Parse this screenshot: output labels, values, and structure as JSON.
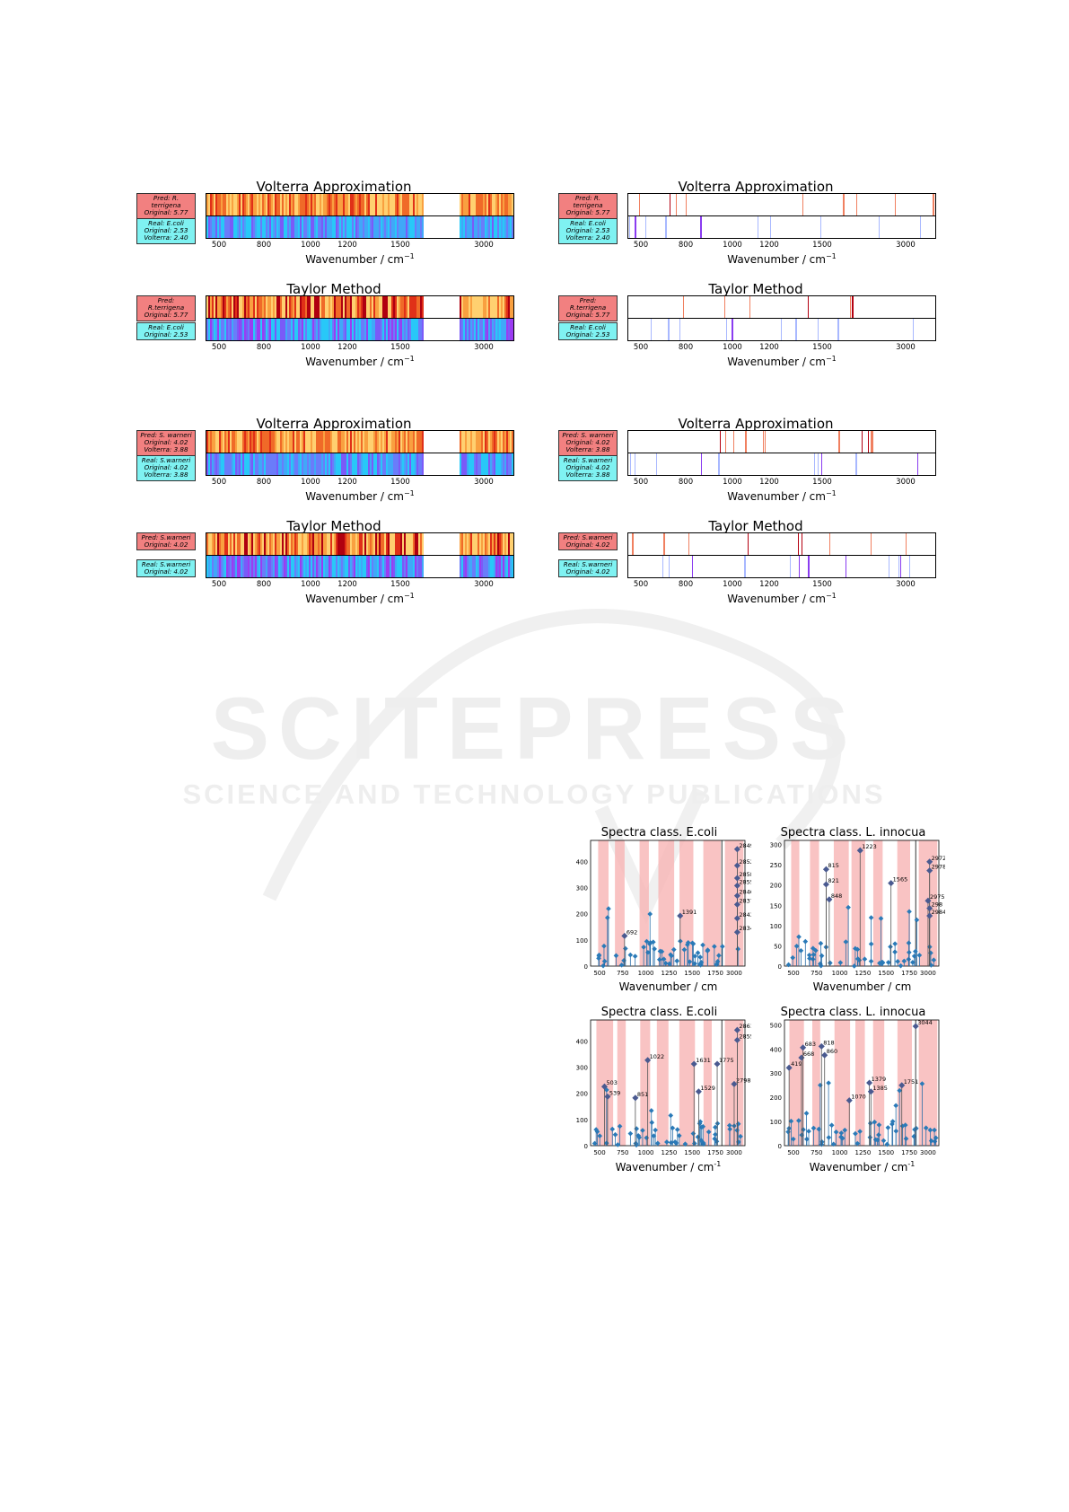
{
  "heatmap_panels": [
    {
      "id": "p1",
      "title": "Volterra Approximation",
      "pred": [
        "Pred: R. terrigena",
        "Original:  5.77",
        "Volterra: 5.41"
      ],
      "real": [
        "Real: E.coli",
        "Original:  2.53",
        "Volterra: 2.40"
      ],
      "style": "dense",
      "seed": 1
    },
    {
      "id": "p2",
      "title": "Volterra Approximation",
      "pred": [
        "Pred: R. terrigena",
        "Original:  5.77",
        "Volterra: 5.41"
      ],
      "real": [
        "Real: E.coli",
        "Original:  2.53",
        "Volterra: 2.40"
      ],
      "style": "sparse",
      "seed": 2
    },
    {
      "id": "p3",
      "title": "Taylor Method",
      "pred": [
        "Pred: R.terrigena",
        "Original:  5.77"
      ],
      "real": [
        "Real: E.coli",
        "Original:  2.53"
      ],
      "style": "dense2",
      "seed": 3
    },
    {
      "id": "p4",
      "title": "Taylor Method",
      "pred": [
        "Pred: R.terrigena",
        "Original:  5.77"
      ],
      "real": [
        "Real: E.coli",
        "Original:  2.53"
      ],
      "style": "sparse",
      "seed": 4
    },
    {
      "id": "p5",
      "title": "Volterra Approximation",
      "pred": [
        "Pred: S. warneri",
        "Original:  4.02",
        "Volterra: 3.88"
      ],
      "real": [
        "Real: S.warneri",
        "Original:  4.02",
        "Volterra: 3.88"
      ],
      "style": "dense",
      "seed": 5
    },
    {
      "id": "p6",
      "title": "Volterra Approximation",
      "pred": [
        "Pred: S. warneri",
        "Original:  4.02",
        "Volterra: 3.88"
      ],
      "real": [
        "Real: S.warneri",
        "Original:  4.02",
        "Volterra: 3.88"
      ],
      "style": "sparse",
      "seed": 6
    },
    {
      "id": "p7",
      "title": "Taylor Method",
      "pred": [
        "Pred: S.warneri",
        "Original:  4.02"
      ],
      "real": [
        "Real: S.warneri",
        "Original:  4.02"
      ],
      "style": "dense2",
      "seed": 7
    },
    {
      "id": "p8",
      "title": "Taylor Method",
      "pred": [
        "Pred: S.warneri",
        "Original:  4.02"
      ],
      "real": [
        "Real: S.warneri",
        "Original:  4.02"
      ],
      "style": "sparse",
      "seed": 8
    }
  ],
  "heatmap_axis": {
    "ticks": [
      "500",
      "800",
      "1000",
      "1200",
      "1500",
      "3000"
    ],
    "xlabel": "Wavenumber / cm",
    "xlabel_sup": "−1"
  },
  "spectra_panels": [
    {
      "id": "s1",
      "title": "Spectra class. E.coli",
      "yticks": [
        "0",
        "100",
        "200",
        "300",
        "400"
      ],
      "ymax": 480,
      "xticks": [
        "500",
        "750",
        "1000",
        "1250",
        "1500",
        "1750",
        "3000"
      ],
      "xlabel": "Wavenumber / cm",
      "xlabel_sup": "",
      "labels": [
        [
          "692",
          0.22,
          0.24
        ],
        [
          "1391",
          0.58,
          0.4
        ],
        [
          "2849",
          0.95,
          0.93
        ],
        [
          "2852",
          0.95,
          0.8
        ],
        [
          "2858",
          0.95,
          0.7
        ],
        [
          "2855",
          0.95,
          0.64
        ],
        [
          "2846",
          0.95,
          0.56
        ],
        [
          "2837",
          0.95,
          0.49
        ],
        [
          "2843",
          0.95,
          0.38
        ],
        [
          "2834",
          0.95,
          0.27
        ]
      ],
      "seed": 11
    },
    {
      "id": "s2",
      "title": "Spectra class. L. innocua",
      "yticks": [
        "0",
        "50",
        "100",
        "150",
        "200",
        "250",
        "300"
      ],
      "ymax": 310,
      "xticks": [
        "500",
        "750",
        "1000",
        "1250",
        "1500",
        "1750",
        "3000"
      ],
      "xlabel": "Wavenumber / cm",
      "xlabel_sup": "",
      "labels": [
        [
          "815",
          0.27,
          0.77
        ],
        [
          "821",
          0.27,
          0.65
        ],
        [
          "848",
          0.29,
          0.53
        ],
        [
          "1223",
          0.49,
          0.92
        ],
        [
          "1565",
          0.69,
          0.66
        ],
        [
          "2972",
          0.94,
          0.83
        ],
        [
          "2978",
          0.94,
          0.76
        ],
        [
          "2975",
          0.93,
          0.52
        ],
        [
          "298",
          0.94,
          0.46
        ],
        [
          "2984",
          0.94,
          0.4
        ]
      ],
      "seed": 12
    },
    {
      "id": "s3",
      "title": "Spectra class. E.coli",
      "yticks": [
        "0",
        "100",
        "200",
        "300",
        "400"
      ],
      "ymax": 480,
      "xticks": [
        "500",
        "750",
        "1000",
        "1250",
        "1500",
        "1750",
        "3000"
      ],
      "xlabel": "Wavenumber / cm",
      "xlabel_sup": "-1",
      "labels": [
        [
          "503",
          0.09,
          0.47
        ],
        [
          "539",
          0.11,
          0.39
        ],
        [
          "851",
          0.29,
          0.38
        ],
        [
          "1022",
          0.37,
          0.68
        ],
        [
          "1631",
          0.67,
          0.65
        ],
        [
          "1529",
          0.7,
          0.43
        ],
        [
          "1775",
          0.82,
          0.65
        ],
        [
          "2798",
          0.93,
          0.49
        ],
        [
          "2861",
          0.95,
          0.92
        ],
        [
          "2855",
          0.95,
          0.84
        ]
      ],
      "seed": 13
    },
    {
      "id": "s4",
      "title": "Spectra class. L. innocua",
      "yticks": [
        "0",
        "100",
        "200",
        "300",
        "400",
        "500"
      ],
      "ymax": 520,
      "xticks": [
        "500",
        "750",
        "1000",
        "1250",
        "1500",
        "1750",
        "3000"
      ],
      "xlabel": "Wavenumber / cm",
      "xlabel_sup": "-1",
      "labels": [
        [
          "419",
          0.03,
          0.62
        ],
        [
          "668",
          0.11,
          0.7
        ],
        [
          "683",
          0.12,
          0.78
        ],
        [
          "818",
          0.24,
          0.79
        ],
        [
          "860",
          0.26,
          0.72
        ],
        [
          "1070",
          0.42,
          0.36
        ],
        [
          "1379",
          0.55,
          0.5
        ],
        [
          "1385",
          0.56,
          0.43
        ],
        [
          "1751",
          0.76,
          0.48
        ],
        [
          "3044",
          0.85,
          0.95
        ]
      ],
      "seed": 14
    }
  ],
  "watermark": {
    "big": "SCITEPRESS",
    "small": "SCIENCE AND TECHNOLOGY PUBLICATIONS"
  }
}
